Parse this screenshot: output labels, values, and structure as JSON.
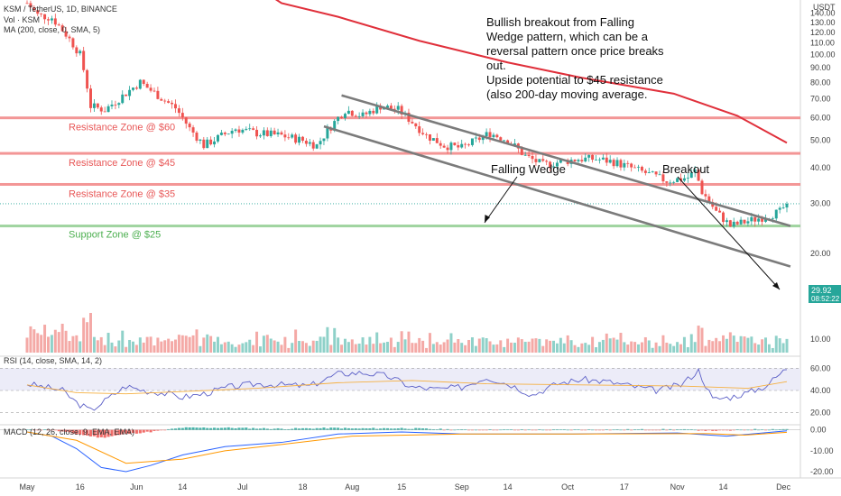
{
  "chart_data": {
    "type": "candlestick",
    "symbol_title": "KSM / TetherUS, 1D, BINANCE",
    "legends": {
      "volume": "Vol · KSM",
      "ma": "MA (200, close, 0, SMA, 5)",
      "rsi": "RSI (14, close, SMA, 14, 2)",
      "macd": "MACD (12, 26, close, 9, EMA, EMA)"
    },
    "price_axis": {
      "unit": "USDT",
      "ticks": [
        "140.00",
        "130.00",
        "120.00",
        "110.00",
        "100.00",
        "90.00",
        "80.00",
        "70.00",
        "60.00",
        "50.00",
        "40.00",
        "30.00",
        "20.00",
        "10.00"
      ],
      "ylim": [
        10,
        147
      ]
    },
    "rsi_axis": {
      "ticks": [
        "60.00",
        "40.00",
        "20.00"
      ],
      "ylim": [
        10,
        70
      ]
    },
    "macd_axis": {
      "ticks": [
        "0.00",
        "-10.00",
        "-20.00"
      ],
      "ylim": [
        -23,
        2
      ]
    },
    "x_axis": {
      "ticks": [
        "May",
        "16",
        "Jun",
        "14",
        "Jul",
        "18",
        "Aug",
        "15",
        "Sep",
        "14",
        "Oct",
        "17",
        "Nov",
        "14",
        "Dec"
      ],
      "range": [
        "2021-05-01",
        "2021-12-02"
      ]
    },
    "close_series": [
      {
        "date": "2021-05-01",
        "value": 152
      },
      {
        "date": "2021-05-04",
        "value": 138
      },
      {
        "date": "2021-05-08",
        "value": 135
      },
      {
        "date": "2021-05-12",
        "value": 118
      },
      {
        "date": "2021-05-16",
        "value": 100
      },
      {
        "date": "2021-05-19",
        "value": 66
      },
      {
        "date": "2021-05-23",
        "value": 64
      },
      {
        "date": "2021-05-27",
        "value": 70
      },
      {
        "date": "2021-06-02",
        "value": 80
      },
      {
        "date": "2021-06-05",
        "value": 75
      },
      {
        "date": "2021-06-09",
        "value": 69
      },
      {
        "date": "2021-06-12",
        "value": 65
      },
      {
        "date": "2021-06-16",
        "value": 55
      },
      {
        "date": "2021-06-20",
        "value": 48
      },
      {
        "date": "2021-06-24",
        "value": 51
      },
      {
        "date": "2021-06-29",
        "value": 55
      },
      {
        "date": "2021-07-05",
        "value": 53
      },
      {
        "date": "2021-07-12",
        "value": 52
      },
      {
        "date": "2021-07-18",
        "value": 50
      },
      {
        "date": "2021-07-22",
        "value": 48
      },
      {
        "date": "2021-07-27",
        "value": 58
      },
      {
        "date": "2021-07-30",
        "value": 64
      },
      {
        "date": "2021-08-04",
        "value": 61
      },
      {
        "date": "2021-08-09",
        "value": 66
      },
      {
        "date": "2021-08-14",
        "value": 64
      },
      {
        "date": "2021-08-18",
        "value": 58
      },
      {
        "date": "2021-08-22",
        "value": 52
      },
      {
        "date": "2021-08-27",
        "value": 48
      },
      {
        "date": "2021-09-01",
        "value": 47
      },
      {
        "date": "2021-09-05",
        "value": 50
      },
      {
        "date": "2021-09-09",
        "value": 53
      },
      {
        "date": "2021-09-14",
        "value": 50
      },
      {
        "date": "2021-09-19",
        "value": 44
      },
      {
        "date": "2021-09-24",
        "value": 41
      },
      {
        "date": "2021-09-29",
        "value": 42
      },
      {
        "date": "2021-10-04",
        "value": 43
      },
      {
        "date": "2021-10-09",
        "value": 43
      },
      {
        "date": "2021-10-14",
        "value": 42
      },
      {
        "date": "2021-10-19",
        "value": 40
      },
      {
        "date": "2021-10-24",
        "value": 38
      },
      {
        "date": "2021-10-29",
        "value": 36
      },
      {
        "date": "2021-11-04",
        "value": 37
      },
      {
        "date": "2021-11-06",
        "value": 39
      },
      {
        "date": "2021-11-08",
        "value": 33
      },
      {
        "date": "2021-11-12",
        "value": 28
      },
      {
        "date": "2021-11-16",
        "value": 25
      },
      {
        "date": "2021-11-21",
        "value": 26
      },
      {
        "date": "2021-11-26",
        "value": 27
      },
      {
        "date": "2021-11-30",
        "value": 28
      },
      {
        "date": "2021-12-02",
        "value": 29.92
      }
    ],
    "ma200_series": [
      {
        "date": "2021-06-26",
        "value": 205
      },
      {
        "date": "2021-07-12",
        "value": 152
      },
      {
        "date": "2021-07-28",
        "value": 136
      },
      {
        "date": "2021-08-20",
        "value": 112
      },
      {
        "date": "2021-09-14",
        "value": 94
      },
      {
        "date": "2021-10-05",
        "value": 83
      },
      {
        "date": "2021-10-31",
        "value": 73
      },
      {
        "date": "2021-11-18",
        "value": 61
      },
      {
        "date": "2021-12-02",
        "value": 49
      }
    ],
    "rsi_series": [
      {
        "date": "2021-05-01",
        "value": 46
      },
      {
        "date": "2021-05-06",
        "value": 43
      },
      {
        "date": "2021-05-11",
        "value": 40
      },
      {
        "date": "2021-05-15",
        "value": 29
      },
      {
        "date": "2021-05-19",
        "value": 22
      },
      {
        "date": "2021-05-24",
        "value": 33
      },
      {
        "date": "2021-05-29",
        "value": 44
      },
      {
        "date": "2021-06-03",
        "value": 40
      },
      {
        "date": "2021-06-08",
        "value": 38
      },
      {
        "date": "2021-06-14",
        "value": 34
      },
      {
        "date": "2021-06-20",
        "value": 37
      },
      {
        "date": "2021-06-27",
        "value": 43
      },
      {
        "date": "2021-07-05",
        "value": 46
      },
      {
        "date": "2021-07-12",
        "value": 45
      },
      {
        "date": "2021-07-20",
        "value": 44
      },
      {
        "date": "2021-07-28",
        "value": 55
      },
      {
        "date": "2021-08-04",
        "value": 56
      },
      {
        "date": "2021-08-11",
        "value": 53
      },
      {
        "date": "2021-08-18",
        "value": 43
      },
      {
        "date": "2021-08-25",
        "value": 41
      },
      {
        "date": "2021-09-01",
        "value": 43
      },
      {
        "date": "2021-09-08",
        "value": 52
      },
      {
        "date": "2021-09-15",
        "value": 45
      },
      {
        "date": "2021-09-21",
        "value": 36
      },
      {
        "date": "2021-09-28",
        "value": 46
      },
      {
        "date": "2021-10-05",
        "value": 50
      },
      {
        "date": "2021-10-12",
        "value": 48
      },
      {
        "date": "2021-10-19",
        "value": 44
      },
      {
        "date": "2021-10-26",
        "value": 40
      },
      {
        "date": "2021-11-02",
        "value": 45
      },
      {
        "date": "2021-11-07",
        "value": 58
      },
      {
        "date": "2021-11-11",
        "value": 32
      },
      {
        "date": "2021-11-16",
        "value": 34
      },
      {
        "date": "2021-11-21",
        "value": 38
      },
      {
        "date": "2021-11-26",
        "value": 44
      },
      {
        "date": "2021-12-02",
        "value": 60
      }
    ],
    "rsi_ma_series": [
      {
        "date": "2021-05-01",
        "value": 45
      },
      {
        "date": "2021-05-15",
        "value": 38
      },
      {
        "date": "2021-05-29",
        "value": 37
      },
      {
        "date": "2021-06-14",
        "value": 39
      },
      {
        "date": "2021-07-05",
        "value": 42
      },
      {
        "date": "2021-07-28",
        "value": 47
      },
      {
        "date": "2021-08-18",
        "value": 49
      },
      {
        "date": "2021-09-08",
        "value": 46
      },
      {
        "date": "2021-10-05",
        "value": 45
      },
      {
        "date": "2021-11-02",
        "value": 44
      },
      {
        "date": "2021-11-21",
        "value": 42
      },
      {
        "date": "2021-12-02",
        "value": 48
      }
    ],
    "macd_series": [
      {
        "date": "2021-05-01",
        "value": -1
      },
      {
        "date": "2021-05-08",
        "value": -3
      },
      {
        "date": "2021-05-15",
        "value": -9
      },
      {
        "date": "2021-05-22",
        "value": -18
      },
      {
        "date": "2021-05-29",
        "value": -20
      },
      {
        "date": "2021-06-05",
        "value": -17
      },
      {
        "date": "2021-06-14",
        "value": -12
      },
      {
        "date": "2021-06-26",
        "value": -8
      },
      {
        "date": "2021-07-12",
        "value": -6
      },
      {
        "date": "2021-07-28",
        "value": -2
      },
      {
        "date": "2021-08-15",
        "value": -1
      },
      {
        "date": "2021-09-01",
        "value": -2
      },
      {
        "date": "2021-10-01",
        "value": -2
      },
      {
        "date": "2021-11-01",
        "value": -1.5
      },
      {
        "date": "2021-11-15",
        "value": -3
      },
      {
        "date": "2021-12-02",
        "value": -0.5
      }
    ],
    "signal_series": [
      {
        "date": "2021-05-01",
        "value": -1
      },
      {
        "date": "2021-05-15",
        "value": -5
      },
      {
        "date": "2021-05-29",
        "value": -16
      },
      {
        "date": "2021-06-14",
        "value": -14
      },
      {
        "date": "2021-06-26",
        "value": -10
      },
      {
        "date": "2021-07-12",
        "value": -7
      },
      {
        "date": "2021-08-01",
        "value": -3
      },
      {
        "date": "2021-09-01",
        "value": -2
      },
      {
        "date": "2021-10-01",
        "value": -2
      },
      {
        "date": "2021-11-10",
        "value": -1.8
      },
      {
        "date": "2021-11-20",
        "value": -2.5
      },
      {
        "date": "2021-12-02",
        "value": -1.2
      }
    ],
    "horizontal_zones": [
      {
        "label": "Resistance Zone @ $60",
        "price": 60,
        "kind": "resistance"
      },
      {
        "label": "Resistance Zone @ $45",
        "price": 45,
        "kind": "resistance"
      },
      {
        "label": "Resistance Zone @ $35",
        "price": 35,
        "kind": "resistance"
      },
      {
        "label": "Support Zone @ $25",
        "price": 25,
        "kind": "support"
      }
    ],
    "trendlines": [
      {
        "name": "wedge-upper",
        "start": {
          "date": "2021-07-29",
          "price": 72
        },
        "end": {
          "date": "2021-12-03",
          "price": 25
        }
      },
      {
        "name": "wedge-lower",
        "start": {
          "date": "2021-07-24",
          "price": 56
        },
        "end": {
          "date": "2021-12-03",
          "price": 18
        }
      }
    ],
    "annotations": {
      "wedge_label": "Falling Wedge",
      "breakout_label": "Breakout",
      "note_lines": [
        "Bullish breakout from Falling",
        "Wedge pattern, which can be a",
        "reversal pattern once price breaks",
        "out."
      ],
      "note2_lines": [
        "Upside potential to $45 resistance",
        "(also 200-day moving average."
      ]
    },
    "last_price": {
      "value": "29.92",
      "countdown": "08:52:22"
    },
    "colors": {
      "up": "#26a69a",
      "down": "#ef5350",
      "ma": "#e0303b",
      "resistance": "#f28b8b",
      "support": "#96cf96",
      "wedge": "#7b7b7b",
      "rsi": "#5b5fc7",
      "signal": "#ff9800"
    }
  }
}
